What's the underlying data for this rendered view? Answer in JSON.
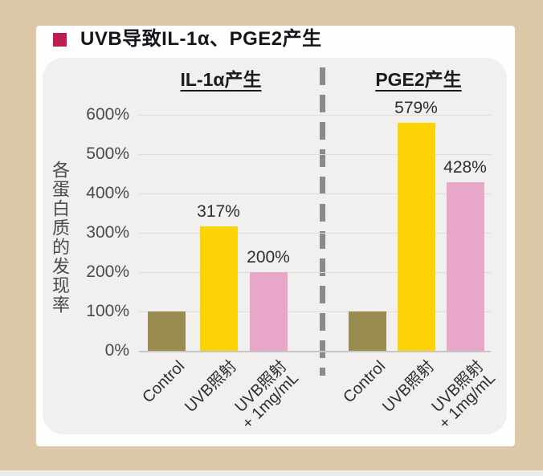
{
  "colors": {
    "background": "#dcc8a8",
    "bottom-strip": "#ebebeb",
    "card": "#fefefe",
    "panel": "#f1f0ee",
    "bullet": "#bd1e4e",
    "title-text": "#15151d",
    "heading-text": "#1b1b1b",
    "axis-text": "#4b4b4b",
    "data-label-text": "#2e2e2e",
    "grid-line": "#dddddb",
    "baseline": "#c6c6c4",
    "divider": "#8a8a8a"
  },
  "title": {
    "text": "UVB导致IL-1α、PGE2产生"
  },
  "chart_data": {
    "type": "bar",
    "ylabel": "各蛋白质的发现率",
    "ylim": [
      0,
      640
    ],
    "yticks": [
      600,
      500,
      400,
      300,
      200,
      100,
      0
    ],
    "ytick_suffix": "%",
    "grid": true,
    "legend": "none",
    "divider_style": "dashed-vertical",
    "categories": [
      "Control",
      "UVB照射",
      "UVB照射\n+ 1mg/mL"
    ],
    "bar_colors": [
      "#988c51",
      "#fdd306",
      "#e8a7c9"
    ],
    "groups": [
      {
        "title": "IL-1α产生",
        "values": [
          100,
          317,
          200
        ],
        "data_labels": [
          "",
          "317%",
          "200%"
        ]
      },
      {
        "title": "PGE2产生",
        "values": [
          100,
          579,
          428
        ],
        "data_labels": [
          "",
          "579%",
          "428%"
        ]
      }
    ]
  }
}
